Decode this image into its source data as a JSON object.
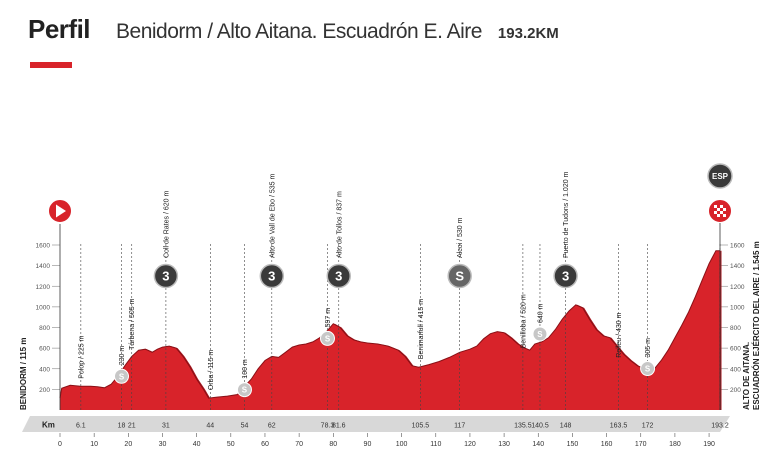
{
  "header": {
    "title": "Perfil",
    "route": "Benidorm / Alto Aitana. Escuadrón E. Aire",
    "distance": "193.2KM"
  },
  "colors": {
    "profile": "#d8232a",
    "profile_dark": "#a81820",
    "accent": "#d8232a",
    "grid": "#444444",
    "band": "#d8d8d8"
  },
  "chart_data": {
    "type": "area",
    "title": "Perfil",
    "xlabel": "Km",
    "ylabel": "",
    "xlim": [
      0,
      193.2
    ],
    "ylim": [
      0,
      1600
    ],
    "x_ticks": [
      0,
      10,
      20,
      30,
      40,
      50,
      60,
      70,
      80,
      90,
      100,
      110,
      120,
      130,
      140,
      150,
      160,
      170,
      180,
      190
    ],
    "y_ticks": [
      200,
      400,
      600,
      800,
      1000,
      1200,
      1400,
      1600
    ],
    "start": {
      "name": "BENIDORM",
      "elev": "115 m"
    },
    "finish": {
      "name": "ALTO DE AITANA. ESCUADRÓN EJÉRCITO DEL AIRE",
      "elev": "1.545 m"
    },
    "profile": [
      [
        0,
        115
      ],
      [
        0.5,
        210
      ],
      [
        3,
        240
      ],
      [
        6,
        230
      ],
      [
        9,
        230
      ],
      [
        11,
        225
      ],
      [
        13,
        215
      ],
      [
        15,
        250
      ],
      [
        17,
        330
      ],
      [
        19,
        430
      ],
      [
        21,
        520
      ],
      [
        23,
        580
      ],
      [
        25,
        590
      ],
      [
        27,
        560
      ],
      [
        28.5,
        590
      ],
      [
        30,
        610
      ],
      [
        32,
        620
      ],
      [
        34,
        600
      ],
      [
        36,
        520
      ],
      [
        38,
        420
      ],
      [
        40,
        300
      ],
      [
        42,
        200
      ],
      [
        43.5,
        115
      ],
      [
        46,
        125
      ],
      [
        49,
        135
      ],
      [
        52,
        150
      ],
      [
        54,
        230
      ],
      [
        56,
        300
      ],
      [
        58,
        400
      ],
      [
        60,
        480
      ],
      [
        62,
        520
      ],
      [
        64,
        510
      ],
      [
        66,
        560
      ],
      [
        68,
        610
      ],
      [
        70,
        630
      ],
      [
        72,
        640
      ],
      [
        74,
        660
      ],
      [
        76,
        700
      ],
      [
        78,
        760
      ],
      [
        80,
        837
      ],
      [
        82,
        800
      ],
      [
        84,
        720
      ],
      [
        86,
        680
      ],
      [
        88,
        660
      ],
      [
        90,
        650
      ],
      [
        93,
        640
      ],
      [
        96,
        620
      ],
      [
        99,
        580
      ],
      [
        101,
        520
      ],
      [
        103,
        430
      ],
      [
        105,
        415
      ],
      [
        108,
        440
      ],
      [
        111,
        470
      ],
      [
        114,
        510
      ],
      [
        117,
        560
      ],
      [
        120,
        590
      ],
      [
        122,
        620
      ],
      [
        124,
        690
      ],
      [
        126,
        740
      ],
      [
        128,
        760
      ],
      [
        130,
        750
      ],
      [
        132,
        700
      ],
      [
        134,
        640
      ],
      [
        136,
        600
      ],
      [
        137.5,
        580
      ],
      [
        139,
        640
      ],
      [
        141,
        660
      ],
      [
        143,
        700
      ],
      [
        145,
        780
      ],
      [
        147,
        880
      ],
      [
        149,
        960
      ],
      [
        151,
        1020
      ],
      [
        153,
        990
      ],
      [
        155,
        880
      ],
      [
        157,
        780
      ],
      [
        159,
        720
      ],
      [
        161,
        700
      ],
      [
        163,
        620
      ],
      [
        165,
        540
      ],
      [
        167,
        480
      ],
      [
        169,
        430
      ],
      [
        171,
        400
      ],
      [
        172.5,
        350
      ],
      [
        174,
        400
      ],
      [
        176,
        480
      ],
      [
        178,
        580
      ],
      [
        180,
        700
      ],
      [
        182,
        820
      ],
      [
        184,
        950
      ],
      [
        186,
        1100
      ],
      [
        188,
        1260
      ],
      [
        190,
        1420
      ],
      [
        192,
        1545
      ],
      [
        193.2,
        1545
      ]
    ],
    "km_marks": [
      {
        "x": 6.1,
        "label": "6.1"
      },
      {
        "x": 18,
        "label": "18"
      },
      {
        "x": 21,
        "label": "21"
      },
      {
        "x": 31,
        "label": "31"
      },
      {
        "x": 44,
        "label": "44"
      },
      {
        "x": 54,
        "label": "54"
      },
      {
        "x": 62,
        "label": "62"
      },
      {
        "x": 78.3,
        "label": "78.3"
      },
      {
        "x": 81.6,
        "label": "81.6"
      },
      {
        "x": 105.5,
        "label": "105.5"
      },
      {
        "x": 117,
        "label": "117"
      },
      {
        "x": 135.5,
        "label": "135.5"
      },
      {
        "x": 140.5,
        "label": "140.5"
      },
      {
        "x": 148,
        "label": "148"
      },
      {
        "x": 163.5,
        "label": "163.5"
      },
      {
        "x": 172,
        "label": "172"
      },
      {
        "x": 193.2,
        "label": "193.2"
      }
    ],
    "waypoints": [
      {
        "name": "Polop / 225 m",
        "km": 6.1,
        "elev": 225,
        "badge": ""
      },
      {
        "name": "230 m",
        "km": 18,
        "elev": 230,
        "badge": "sprint"
      },
      {
        "name": "Tárbena / 505 m",
        "km": 21,
        "elev": 505,
        "badge": ""
      },
      {
        "name": "Coll de Rates / 620 m",
        "km": 31,
        "elev": 620,
        "badge": "3"
      },
      {
        "name": "Orba / 115 m",
        "km": 44,
        "elev": 115,
        "badge": ""
      },
      {
        "name": "100 m",
        "km": 54,
        "elev": 100,
        "badge": "sprint"
      },
      {
        "name": "Alto de Vall de Ebo / 535 m",
        "km": 62,
        "elev": 535,
        "badge": "3"
      },
      {
        "name": "597 m",
        "km": 78.3,
        "elev": 597,
        "badge": "sprint"
      },
      {
        "name": "Alto de Tollos / 837 m",
        "km": 81.6,
        "elev": 837,
        "badge": "3"
      },
      {
        "name": "Benimarfull / 415 m",
        "km": 105.5,
        "elev": 415,
        "badge": ""
      },
      {
        "name": "Alcoi / 530 m",
        "km": 117,
        "elev": 530,
        "badge": "S"
      },
      {
        "name": "Benilloba / 520 m",
        "km": 135.5,
        "elev": 520,
        "badge": ""
      },
      {
        "name": "640 m",
        "km": 140.5,
        "elev": 640,
        "badge": "sprint"
      },
      {
        "name": "Puerto de Tudons / 1.020 m",
        "km": 148,
        "elev": 1020,
        "badge": "3"
      },
      {
        "name": "Relleu / 430 m",
        "km": 163.5,
        "elev": 430,
        "badge": ""
      },
      {
        "name": "305 m",
        "km": 172,
        "elev": 305,
        "badge": "sprint"
      }
    ],
    "finish_badge": "ESP"
  }
}
